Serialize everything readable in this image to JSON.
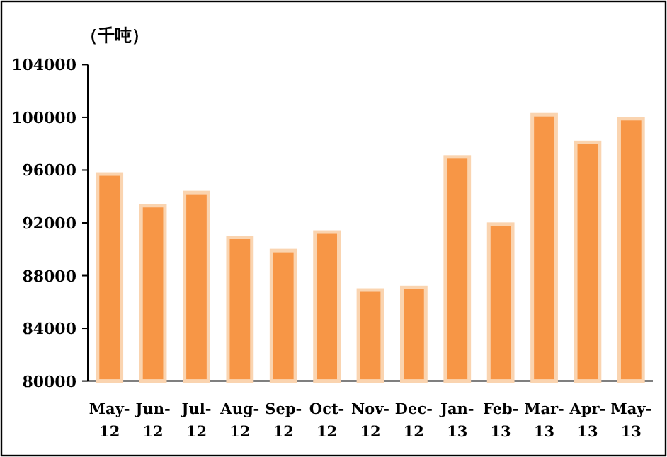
{
  "chart_data": {
    "type": "bar",
    "ylabel": "（千吨）",
    "categories": [
      "May-12",
      "Jun-12",
      "Jul-12",
      "Aug-12",
      "Sep-12",
      "Oct-12",
      "Nov-12",
      "Dec-12",
      "Jan-13",
      "Feb-13",
      "Mar-13",
      "Apr-13",
      "May-13"
    ],
    "values": [
      95700,
      93300,
      94300,
      90900,
      89900,
      91300,
      86900,
      87100,
      97000,
      91900,
      100200,
      98100,
      99900
    ],
    "color": "#f79646",
    "ylim": [
      80000,
      104000
    ],
    "yticks": [
      80000,
      84000,
      88000,
      92000,
      96000,
      100000,
      104000
    ],
    "grid": false
  }
}
